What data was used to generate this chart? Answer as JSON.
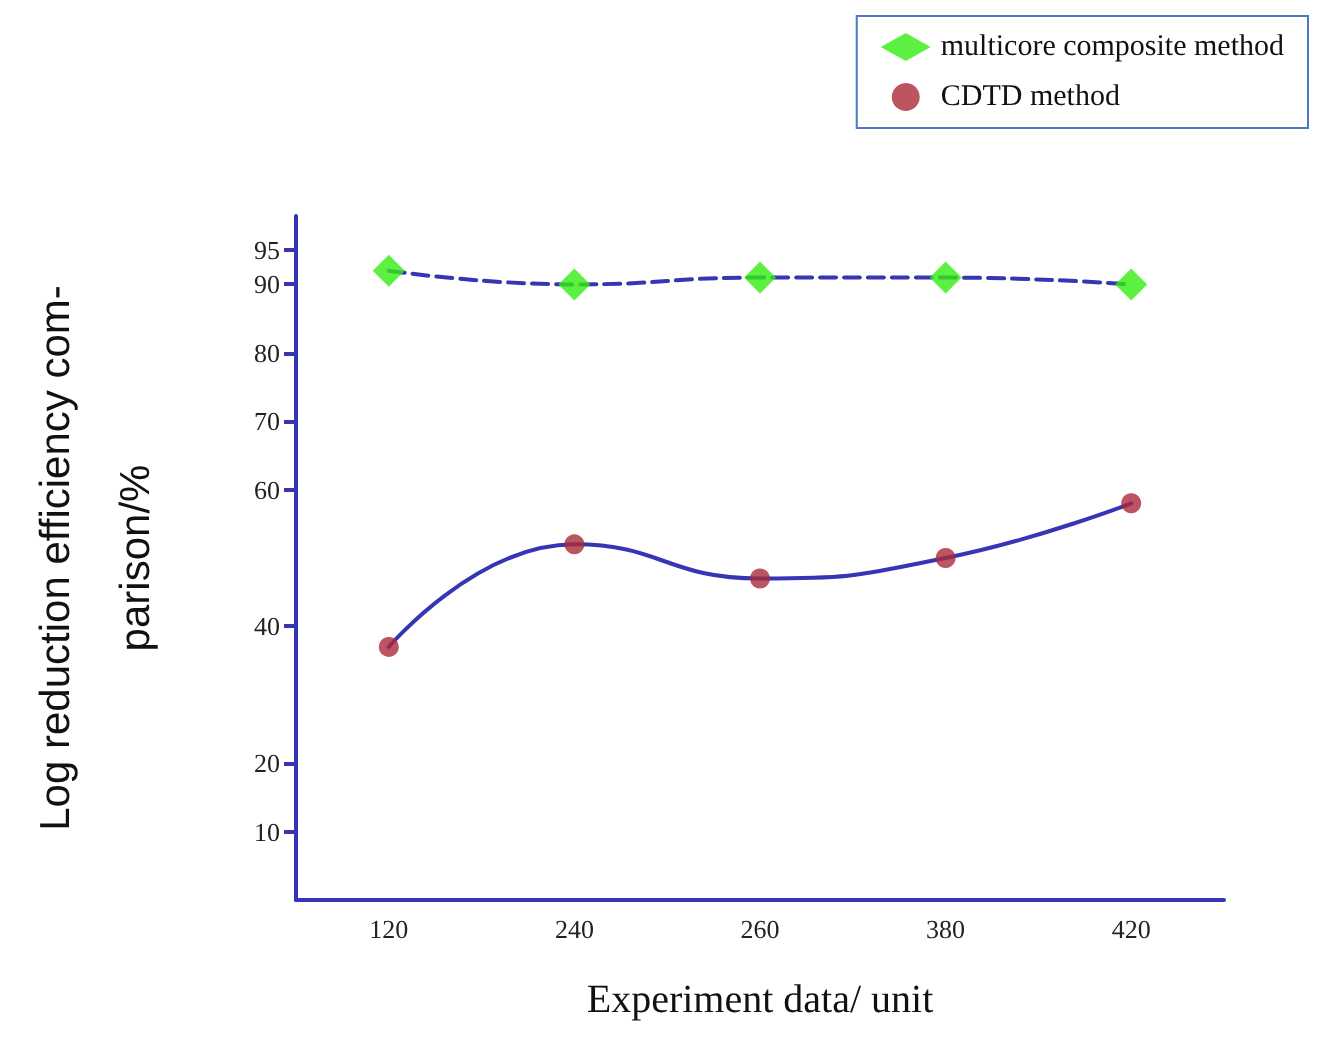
{
  "chart_data": {
    "type": "scatter",
    "xlabel": "Experiment data/ unit",
    "ylabel": "Log reduction efficiency com-\nparison/%",
    "categories": [
      "120",
      "240",
      "260",
      "380",
      "420"
    ],
    "ylim": [
      0,
      100
    ],
    "yticks": [
      10,
      20,
      40,
      60,
      70,
      80,
      90,
      95
    ],
    "grid": false,
    "legend": "top right",
    "series": [
      {
        "name": "multicore composite method",
        "marker": "diamond",
        "color": "#33ee11",
        "values": [
          92,
          90,
          91,
          91,
          90
        ]
      },
      {
        "name": "CDTD method",
        "marker": "circle",
        "color": "#aa2a3a",
        "values": [
          37,
          52,
          47,
          50,
          58
        ]
      },
      {
        "type": "line",
        "marker": "none",
        "line_style": "dashed",
        "color": "#3535b5",
        "values": [
          92,
          90,
          91,
          91,
          90
        ]
      },
      {
        "type": "line",
        "marker": "none",
        "line_style": "solid",
        "color": "#3535b5",
        "values": [
          37,
          52,
          47,
          50,
          58
        ]
      }
    ]
  }
}
